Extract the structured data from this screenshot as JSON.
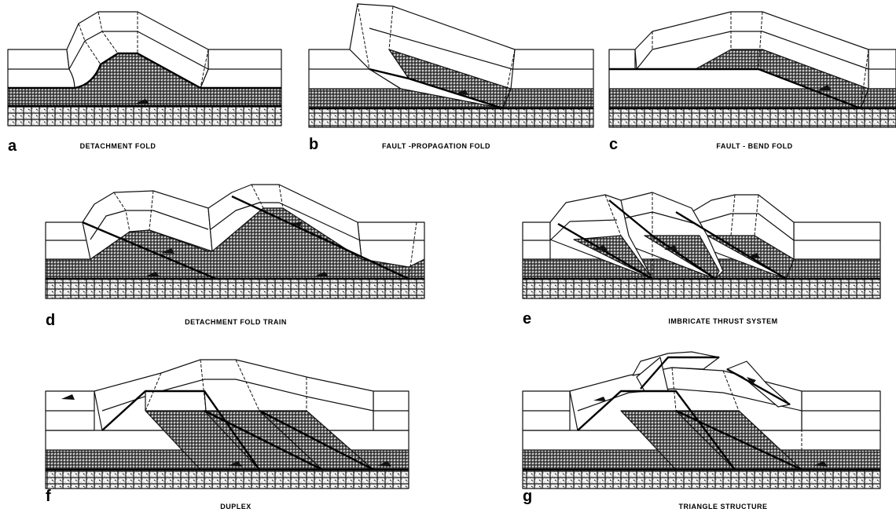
{
  "panels": [
    {
      "letter": "a",
      "caption": "DETACHMENT FOLD"
    },
    {
      "letter": "b",
      "caption": "FAULT -PROPAGATION FOLD"
    },
    {
      "letter": "c",
      "caption": "FAULT - BEND FOLD"
    },
    {
      "letter": "d",
      "caption": "DETACHMENT FOLD TRAIN"
    },
    {
      "letter": "e",
      "caption": "IMBRICATE THRUST SYSTEM"
    },
    {
      "letter": "f",
      "caption": "DUPLEX"
    },
    {
      "letter": "g",
      "caption": "TRIANGLE STRUCTURE"
    }
  ]
}
